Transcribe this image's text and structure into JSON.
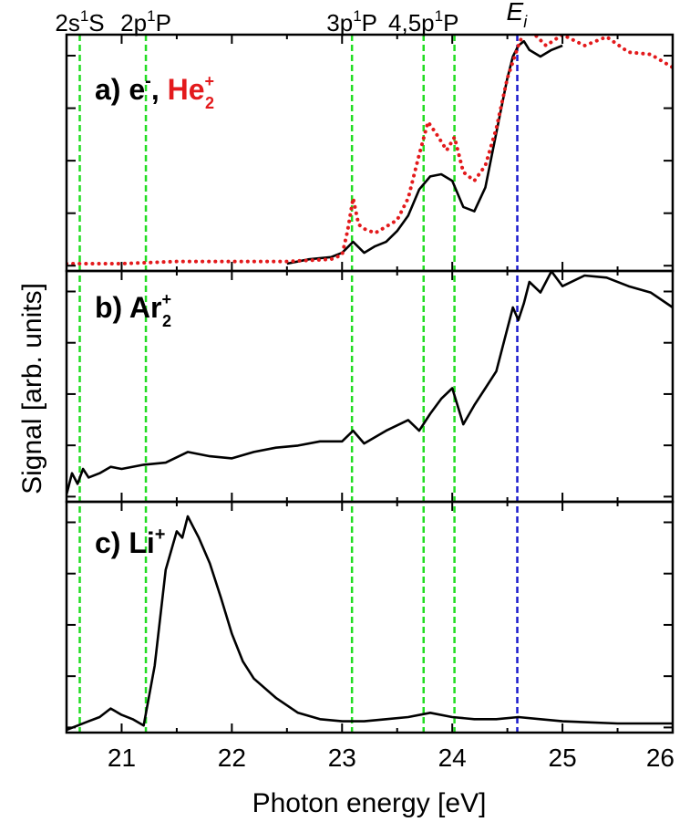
{
  "chart_data": {
    "type": "line",
    "xlabel": "Photon energy [eV]",
    "ylabel": "Signal [arb. units]",
    "xlim": [
      20.5,
      26.0
    ],
    "x_ticks": [
      "21",
      "22",
      "23",
      "24",
      "25",
      "26"
    ],
    "x_tick_values": [
      21,
      22,
      23,
      24,
      25,
      26
    ],
    "grid": false,
    "colors": {
      "black": "#000000",
      "red": "#e31a1c",
      "green": "#22dd22",
      "blue": "#1a1acc"
    },
    "vertical_lines": [
      {
        "x": 20.62,
        "label": "2s",
        "sup": "1",
        "after": "S",
        "color": "#22dd22"
      },
      {
        "x": 21.22,
        "label": "2p",
        "sup": "1",
        "after": "P",
        "color": "#22dd22"
      },
      {
        "x": 23.09,
        "label": "3p",
        "sup": "1",
        "after": "P",
        "color": "#22dd22"
      },
      {
        "x": 23.74,
        "label": "4,5p",
        "sup": "1",
        "after": "P",
        "color": "#22dd22"
      },
      {
        "x": 24.02,
        "label": "",
        "sup": "",
        "after": "",
        "color": "#22dd22"
      },
      {
        "x": 24.59,
        "label": "E",
        "sub": "i",
        "color": "#1a1acc"
      }
    ],
    "panels": [
      {
        "id": "a",
        "label_prefix": "a) e",
        "label_prefix_sup": "-",
        "label_comma": ",",
        "label_red": "He",
        "label_red_sup": "+",
        "label_red_sub": "2",
        "series": [
          {
            "name": "e-",
            "color": "#000000",
            "style": "solid",
            "x": [
              22.5,
              22.7,
              22.9,
              23.0,
              23.1,
              23.2,
              23.3,
              23.4,
              23.5,
              23.6,
              23.7,
              23.8,
              23.9,
              24.0,
              24.1,
              24.2,
              24.3,
              24.4,
              24.5,
              24.55,
              24.6,
              24.65,
              24.7,
              24.8,
              24.9,
              25.0
            ],
            "y": [
              0.0,
              0.02,
              0.03,
              0.05,
              0.1,
              0.05,
              0.08,
              0.1,
              0.15,
              0.22,
              0.34,
              0.4,
              0.41,
              0.38,
              0.26,
              0.24,
              0.35,
              0.6,
              0.85,
              0.95,
              1.0,
              1.02,
              0.98,
              0.95,
              0.98,
              1.0
            ]
          },
          {
            "name": "He2+",
            "color": "#e31a1c",
            "style": "dotted",
            "x": [
              20.5,
              21.0,
              21.5,
              22.0,
              22.5,
              22.9,
              23.0,
              23.05,
              23.1,
              23.15,
              23.2,
              23.3,
              23.4,
              23.5,
              23.6,
              23.7,
              23.78,
              23.85,
              23.95,
              24.02,
              24.1,
              24.2,
              24.3,
              24.4,
              24.5,
              24.6,
              24.68,
              24.75,
              24.85,
              25.0,
              25.2,
              25.4,
              25.6,
              25.8,
              26.0
            ],
            "y": [
              0.0,
              0.0,
              0.01,
              0.01,
              0.01,
              0.02,
              0.04,
              0.15,
              0.3,
              0.18,
              0.16,
              0.14,
              0.17,
              0.2,
              0.3,
              0.5,
              0.65,
              0.6,
              0.52,
              0.58,
              0.42,
              0.38,
              0.45,
              0.62,
              0.85,
              1.0,
              1.1,
              1.05,
              1.0,
              1.05,
              1.0,
              1.04,
              0.97,
              0.96,
              0.9
            ]
          }
        ]
      },
      {
        "id": "b",
        "label_prefix": "b) Ar",
        "label_prefix_sup": "+",
        "label_prefix_sub": "2",
        "series": [
          {
            "name": "Ar2+",
            "color": "#000000",
            "style": "solid",
            "x": [
              20.5,
              20.55,
              20.6,
              20.65,
              20.7,
              20.8,
              20.9,
              21.0,
              21.2,
              21.4,
              21.6,
              21.8,
              22.0,
              22.2,
              22.4,
              22.6,
              22.8,
              23.0,
              23.1,
              23.2,
              23.4,
              23.6,
              23.7,
              23.8,
              23.9,
              24.0,
              24.1,
              24.2,
              24.3,
              24.4,
              24.5,
              24.55,
              24.6,
              24.65,
              24.7,
              24.8,
              24.9,
              25.0,
              25.2,
              25.4,
              25.6,
              25.8,
              26.0
            ],
            "y": [
              0.0,
              0.1,
              0.05,
              0.12,
              0.08,
              0.1,
              0.13,
              0.12,
              0.14,
              0.15,
              0.2,
              0.18,
              0.17,
              0.2,
              0.22,
              0.23,
              0.25,
              0.25,
              0.3,
              0.24,
              0.3,
              0.35,
              0.3,
              0.38,
              0.45,
              0.5,
              0.33,
              0.42,
              0.5,
              0.58,
              0.78,
              0.88,
              0.82,
              0.9,
              1.0,
              0.95,
              1.05,
              0.98,
              1.03,
              1.02,
              0.98,
              0.95,
              0.88
            ]
          }
        ]
      },
      {
        "id": "c",
        "label_prefix": "c) Li",
        "label_prefix_sup": "+",
        "series": [
          {
            "name": "Li+",
            "color": "#000000",
            "style": "solid",
            "x": [
              20.5,
              20.6,
              20.7,
              20.8,
              20.9,
              21.0,
              21.1,
              21.2,
              21.3,
              21.4,
              21.5,
              21.55,
              21.6,
              21.65,
              21.7,
              21.8,
              21.9,
              22.0,
              22.1,
              22.2,
              22.4,
              22.6,
              22.8,
              23.0,
              23.2,
              23.4,
              23.6,
              23.8,
              24.0,
              24.2,
              24.4,
              24.6,
              24.8,
              25.0,
              25.5,
              26.0
            ],
            "y": [
              0.0,
              0.02,
              0.04,
              0.06,
              0.1,
              0.07,
              0.05,
              0.02,
              0.3,
              0.75,
              0.93,
              0.9,
              1.0,
              0.95,
              0.9,
              0.78,
              0.62,
              0.45,
              0.32,
              0.24,
              0.15,
              0.08,
              0.05,
              0.04,
              0.04,
              0.05,
              0.06,
              0.08,
              0.06,
              0.05,
              0.05,
              0.06,
              0.05,
              0.04,
              0.03,
              0.03
            ]
          }
        ]
      }
    ]
  }
}
